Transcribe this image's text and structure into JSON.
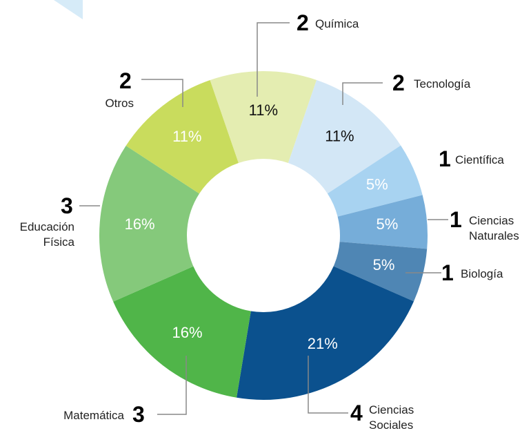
{
  "chart_data": {
    "type": "donut",
    "categories": [
      "Química",
      "Tecnología",
      "Científica",
      "Ciencias Naturales",
      "Biología",
      "Ciencias Sociales",
      "Matemática",
      "Educación Física",
      "Otros"
    ],
    "values": [
      2,
      2,
      1,
      1,
      1,
      4,
      3,
      3,
      2
    ],
    "percent_labels": [
      "11%",
      "11%",
      "5%",
      "5%",
      "5%",
      "21%",
      "16%",
      "16%",
      "11%"
    ],
    "colors": [
      "#e4edb1",
      "#d3e7f6",
      "#a8d3f1",
      "#76add9",
      "#4f86b4",
      "#0b518e",
      "#50b549",
      "#85c97b",
      "#c9dc5d"
    ]
  }
}
